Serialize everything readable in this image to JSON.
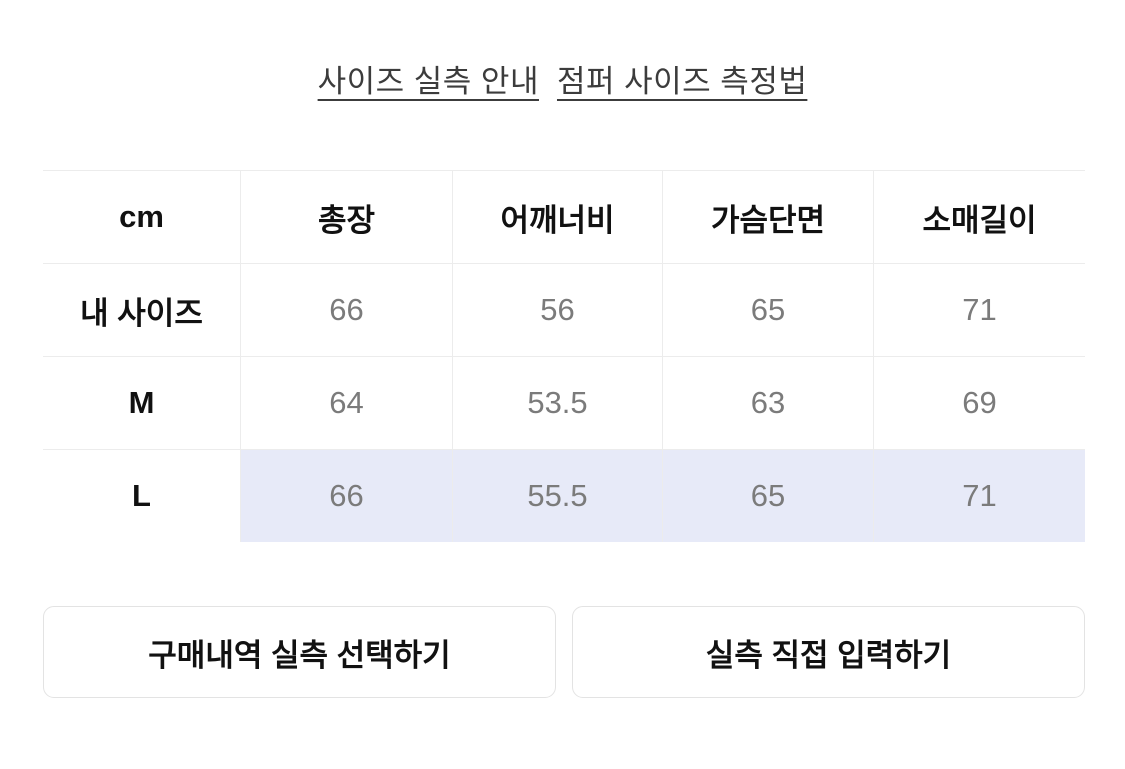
{
  "links": [
    {
      "label": "사이즈 실측 안내"
    },
    {
      "label": "점퍼 사이즈 측정법"
    }
  ],
  "size_table": {
    "unit_header": "cm",
    "headers": [
      "cm",
      "총장",
      "어깨너비",
      "가슴단면",
      "소매길이"
    ],
    "rows": [
      {
        "label": "내 사이즈",
        "values": [
          "66",
          "56",
          "65",
          "71"
        ],
        "highlighted": false
      },
      {
        "label": "M",
        "values": [
          "64",
          "53.5",
          "63",
          "69"
        ],
        "highlighted": false
      },
      {
        "label": "L",
        "values": [
          "66",
          "55.5",
          "65",
          "71"
        ],
        "highlighted": true
      }
    ]
  },
  "buttons": [
    {
      "label": "구매내역 실측 선택하기"
    },
    {
      "label": "실측 직접 입력하기"
    }
  ],
  "colors": {
    "highlight_row_bg": "#e7eaf8",
    "value_text": "#7b7b7b",
    "label_text": "#111111",
    "link_text": "#3c3c3c",
    "table_border": "#ececec",
    "button_border": "#e3e3e3",
    "bottom_bar_bg": "#f5f5f5"
  }
}
